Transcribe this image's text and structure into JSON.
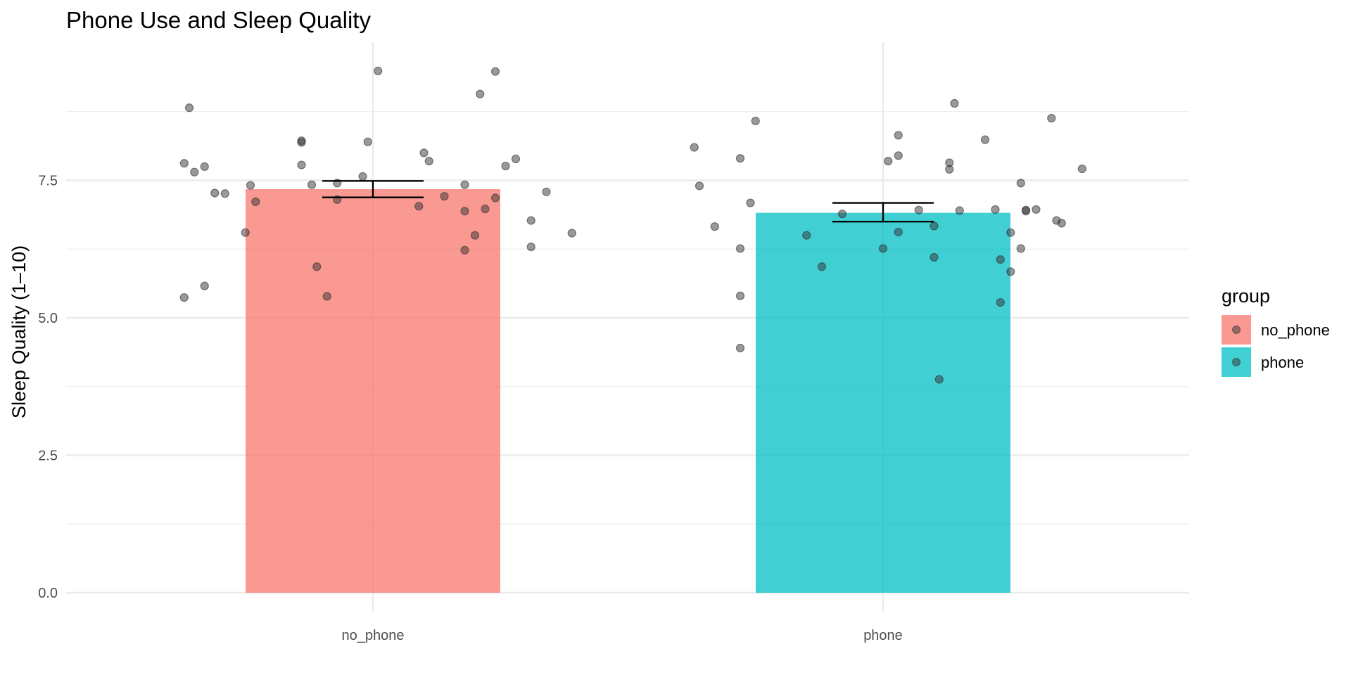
{
  "chart_data": {
    "type": "bar",
    "title": "Phone Use and Sleep Quality",
    "xlabel": "",
    "ylabel": "Sleep Quality (1–10)",
    "categories": [
      "no_phone",
      "phone"
    ],
    "values": [
      7.34,
      6.91
    ],
    "error_bars": [
      {
        "low": 7.19,
        "high": 7.49
      },
      {
        "low": 6.75,
        "high": 7.09
      }
    ],
    "ylim": [
      -0.2,
      10.0
    ],
    "yticks": [
      0.0,
      2.5,
      5.0,
      7.5
    ],
    "ytick_labels": [
      "0.0",
      "2.5",
      "5.0",
      "7.5"
    ],
    "grid": true,
    "legend": {
      "title": "group",
      "placement": "right",
      "entries": [
        "no_phone",
        "phone"
      ]
    },
    "colors": {
      "no_phone": "#F8766D",
      "phone": "#00BFC4",
      "points": "#333333",
      "error_bar": "#000000",
      "grid": "#EBEBEB"
    },
    "points": [
      {
        "group": "no_phone",
        "x": -0.37,
        "y": 7.81
      },
      {
        "group": "no_phone",
        "x": -0.36,
        "y": 8.82
      },
      {
        "group": "no_phone",
        "x": -0.35,
        "y": 7.65
      },
      {
        "group": "no_phone",
        "x": -0.33,
        "y": 7.75
      },
      {
        "group": "no_phone",
        "x": -0.37,
        "y": 5.37
      },
      {
        "group": "no_phone",
        "x": -0.33,
        "y": 5.58
      },
      {
        "group": "no_phone",
        "x": -0.31,
        "y": 7.27
      },
      {
        "group": "no_phone",
        "x": -0.29,
        "y": 7.26
      },
      {
        "group": "no_phone",
        "x": -0.25,
        "y": 6.55
      },
      {
        "group": "no_phone",
        "x": -0.24,
        "y": 7.41
      },
      {
        "group": "no_phone",
        "x": -0.23,
        "y": 7.11
      },
      {
        "group": "no_phone",
        "x": -0.14,
        "y": 8.22
      },
      {
        "group": "no_phone",
        "x": -0.14,
        "y": 8.19
      },
      {
        "group": "no_phone",
        "x": -0.14,
        "y": 7.78
      },
      {
        "group": "no_phone",
        "x": -0.12,
        "y": 7.42
      },
      {
        "group": "no_phone",
        "x": -0.11,
        "y": 5.93
      },
      {
        "group": "no_phone",
        "x": -0.09,
        "y": 5.39
      },
      {
        "group": "no_phone",
        "x": -0.07,
        "y": 7.45
      },
      {
        "group": "no_phone",
        "x": -0.07,
        "y": 7.15
      },
      {
        "group": "no_phone",
        "x": -0.02,
        "y": 7.57
      },
      {
        "group": "no_phone",
        "x": -0.01,
        "y": 8.2
      },
      {
        "group": "no_phone",
        "x": 0.01,
        "y": 9.49
      },
      {
        "group": "no_phone",
        "x": 0.09,
        "y": 7.03
      },
      {
        "group": "no_phone",
        "x": 0.1,
        "y": 8.0
      },
      {
        "group": "no_phone",
        "x": 0.11,
        "y": 7.85
      },
      {
        "group": "no_phone",
        "x": 0.14,
        "y": 7.21
      },
      {
        "group": "no_phone",
        "x": 0.18,
        "y": 7.42
      },
      {
        "group": "no_phone",
        "x": 0.18,
        "y": 6.94
      },
      {
        "group": "no_phone",
        "x": 0.18,
        "y": 6.23
      },
      {
        "group": "no_phone",
        "x": 0.2,
        "y": 6.5
      },
      {
        "group": "no_phone",
        "x": 0.21,
        "y": 9.07
      },
      {
        "group": "no_phone",
        "x": 0.22,
        "y": 6.98
      },
      {
        "group": "no_phone",
        "x": 0.24,
        "y": 9.48
      },
      {
        "group": "no_phone",
        "x": 0.24,
        "y": 7.18
      },
      {
        "group": "no_phone",
        "x": 0.26,
        "y": 7.76
      },
      {
        "group": "no_phone",
        "x": 0.28,
        "y": 7.89
      },
      {
        "group": "no_phone",
        "x": 0.31,
        "y": 6.77
      },
      {
        "group": "no_phone",
        "x": 0.31,
        "y": 6.29
      },
      {
        "group": "no_phone",
        "x": 0.34,
        "y": 7.29
      },
      {
        "group": "no_phone",
        "x": 0.39,
        "y": 6.54
      },
      {
        "group": "phone",
        "x": -0.37,
        "y": 8.1
      },
      {
        "group": "phone",
        "x": -0.36,
        "y": 7.4
      },
      {
        "group": "phone",
        "x": -0.33,
        "y": 6.66
      },
      {
        "group": "phone",
        "x": -0.28,
        "y": 7.9
      },
      {
        "group": "phone",
        "x": -0.28,
        "y": 6.26
      },
      {
        "group": "phone",
        "x": -0.28,
        "y": 5.4
      },
      {
        "group": "phone",
        "x": -0.28,
        "y": 4.45
      },
      {
        "group": "phone",
        "x": -0.26,
        "y": 7.09
      },
      {
        "group": "phone",
        "x": -0.25,
        "y": 8.58
      },
      {
        "group": "phone",
        "x": -0.15,
        "y": 6.5
      },
      {
        "group": "phone",
        "x": -0.12,
        "y": 5.93
      },
      {
        "group": "phone",
        "x": -0.08,
        "y": 6.89
      },
      {
        "group": "phone",
        "x": 0.0,
        "y": 6.26
      },
      {
        "group": "phone",
        "x": 0.01,
        "y": 7.85
      },
      {
        "group": "phone",
        "x": 0.03,
        "y": 8.32
      },
      {
        "group": "phone",
        "x": 0.03,
        "y": 7.95
      },
      {
        "group": "phone",
        "x": 0.03,
        "y": 6.56
      },
      {
        "group": "phone",
        "x": 0.07,
        "y": 6.96
      },
      {
        "group": "phone",
        "x": 0.1,
        "y": 6.67
      },
      {
        "group": "phone",
        "x": 0.1,
        "y": 6.1
      },
      {
        "group": "phone",
        "x": 0.11,
        "y": 3.88
      },
      {
        "group": "phone",
        "x": 0.13,
        "y": 7.82
      },
      {
        "group": "phone",
        "x": 0.13,
        "y": 7.7
      },
      {
        "group": "phone",
        "x": 0.14,
        "y": 8.9
      },
      {
        "group": "phone",
        "x": 0.15,
        "y": 6.95
      },
      {
        "group": "phone",
        "x": 0.2,
        "y": 8.24
      },
      {
        "group": "phone",
        "x": 0.22,
        "y": 6.97
      },
      {
        "group": "phone",
        "x": 0.23,
        "y": 6.06
      },
      {
        "group": "phone",
        "x": 0.23,
        "y": 5.28
      },
      {
        "group": "phone",
        "x": 0.25,
        "y": 6.55
      },
      {
        "group": "phone",
        "x": 0.25,
        "y": 5.84
      },
      {
        "group": "phone",
        "x": 0.27,
        "y": 7.45
      },
      {
        "group": "phone",
        "x": 0.27,
        "y": 6.26
      },
      {
        "group": "phone",
        "x": 0.28,
        "y": 6.96
      },
      {
        "group": "phone",
        "x": 0.28,
        "y": 6.94
      },
      {
        "group": "phone",
        "x": 0.3,
        "y": 6.97
      },
      {
        "group": "phone",
        "x": 0.33,
        "y": 8.63
      },
      {
        "group": "phone",
        "x": 0.34,
        "y": 6.77
      },
      {
        "group": "phone",
        "x": 0.35,
        "y": 6.72
      },
      {
        "group": "phone",
        "x": 0.39,
        "y": 7.71
      }
    ]
  }
}
